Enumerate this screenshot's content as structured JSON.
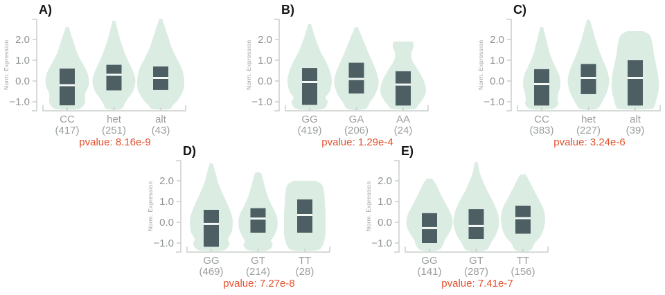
{
  "figure": {
    "background": "#ffffff",
    "description_texts": []
  },
  "styles": {
    "violin_fill": "#cfe6da",
    "violin_opacity": 0.75,
    "box_fill": "#4d5f63",
    "median_color": "#f4f9f6",
    "axis_color": "#c9cfca",
    "tick_text_color": "#8f948f",
    "label_text_color": "#9aa09b",
    "pvalue_color": "#e2512e",
    "letter_color": "#151515"
  },
  "chart_data": [
    {
      "type": "violin",
      "panel": "A",
      "panel_label": "A)",
      "ylabel": "Norm. Expression",
      "ytick_values": [
        2,
        1,
        0,
        -1
      ],
      "ytick_labels": [
        "2.0",
        "1.0",
        "0.0",
        "−1.0"
      ],
      "ylim": [
        -1.35,
        3.1
      ],
      "grid": false,
      "categories": [
        "CC",
        "het",
        "alt"
      ],
      "counts": [
        417,
        251,
        43
      ],
      "count_labels": [
        "(417)",
        "(251)",
        "(43)"
      ],
      "pvalue": "8.16e-9",
      "pvalue_label": "pvalue: 8.16e-9",
      "boxes": [
        {
          "q1": -1.17,
          "median": -0.2,
          "q3": 0.6
        },
        {
          "q1": -0.45,
          "median": 0.3,
          "q3": 0.78
        },
        {
          "q1": -0.43,
          "median": 0.15,
          "q3": 0.7
        }
      ],
      "violins": [
        [
          [
            2.6,
            2
          ],
          [
            2.2,
            6
          ],
          [
            1.8,
            10
          ],
          [
            1.3,
            15
          ],
          [
            0.8,
            23
          ],
          [
            0.3,
            30
          ],
          [
            -0.2,
            31
          ],
          [
            -0.6,
            26
          ],
          [
            -0.9,
            26
          ],
          [
            -1.1,
            25
          ],
          [
            -1.35,
            16
          ]
        ],
        [
          [
            2.9,
            2
          ],
          [
            2.5,
            5
          ],
          [
            2.0,
            9
          ],
          [
            1.5,
            14
          ],
          [
            1.0,
            20
          ],
          [
            0.5,
            27
          ],
          [
            0.05,
            31
          ],
          [
            -0.45,
            28
          ],
          [
            -0.8,
            21
          ],
          [
            -1.05,
            16
          ],
          [
            -1.35,
            10
          ]
        ],
        [
          [
            3.0,
            2
          ],
          [
            2.6,
            6
          ],
          [
            2.1,
            11
          ],
          [
            1.6,
            16
          ],
          [
            1.1,
            23
          ],
          [
            0.55,
            31
          ],
          [
            0.0,
            34
          ],
          [
            -0.5,
            32
          ],
          [
            -0.9,
            25
          ],
          [
            -1.15,
            18
          ],
          [
            -1.35,
            12
          ]
        ]
      ]
    },
    {
      "type": "violin",
      "panel": "B",
      "panel_label": "B)",
      "ylabel": "Norm. Expression",
      "ytick_values": [
        2,
        1,
        0,
        -1
      ],
      "ytick_labels": [
        "2.0",
        "1.0",
        "0.0",
        "−1.0"
      ],
      "ylim": [
        -1.35,
        3.1
      ],
      "grid": false,
      "categories": [
        "GG",
        "GA",
        "AA"
      ],
      "counts": [
        419,
        206,
        24
      ],
      "count_labels": [
        "(419)",
        "(206)",
        "(24)"
      ],
      "pvalue": "1.29e-4",
      "pvalue_label": "pvalue: 1.29e-4",
      "boxes": [
        {
          "q1": -1.15,
          "median": -0.05,
          "q3": 0.63
        },
        {
          "q1": -0.6,
          "median": 0.1,
          "q3": 0.88
        },
        {
          "q1": -1.18,
          "median": -0.17,
          "q3": 0.47
        }
      ],
      "violins": [
        [
          [
            2.75,
            2
          ],
          [
            2.3,
            6
          ],
          [
            1.9,
            10
          ],
          [
            1.4,
            16
          ],
          [
            0.9,
            24
          ],
          [
            0.4,
            30
          ],
          [
            -0.05,
            32
          ],
          [
            -0.5,
            29
          ],
          [
            -0.8,
            23
          ],
          [
            -1.0,
            26
          ],
          [
            -1.35,
            18
          ]
        ],
        [
          [
            2.6,
            2
          ],
          [
            2.2,
            7
          ],
          [
            1.8,
            12
          ],
          [
            1.3,
            18
          ],
          [
            0.85,
            24
          ],
          [
            0.35,
            30
          ],
          [
            -0.15,
            32
          ],
          [
            -0.65,
            27
          ],
          [
            -1.0,
            20
          ],
          [
            -1.35,
            12
          ]
        ],
        [
          [
            1.9,
            14
          ],
          [
            1.65,
            15
          ],
          [
            1.35,
            12
          ],
          [
            1.0,
            13
          ],
          [
            0.5,
            22
          ],
          [
            0.0,
            30
          ],
          [
            -0.5,
            33
          ],
          [
            -0.9,
            28
          ],
          [
            -1.15,
            22
          ],
          [
            -1.35,
            15
          ]
        ]
      ]
    },
    {
      "type": "violin",
      "panel": "C",
      "panel_label": "C)",
      "ylabel": "Norm. Expression",
      "ytick_values": [
        2,
        1,
        0,
        -1
      ],
      "ytick_labels": [
        "2.0",
        "1.0",
        "0.0",
        "−1.0"
      ],
      "ylim": [
        -1.35,
        3.1
      ],
      "grid": false,
      "categories": [
        "CC",
        "het",
        "alt"
      ],
      "counts": [
        383,
        227,
        39
      ],
      "count_labels": [
        "(383)",
        "(227)",
        "(39)"
      ],
      "pvalue": "3.24e-6",
      "pvalue_label": "pvalue: 3.24e-6",
      "boxes": [
        {
          "q1": -1.18,
          "median": -0.15,
          "q3": 0.57
        },
        {
          "q1": -0.63,
          "median": 0.15,
          "q3": 0.82
        },
        {
          "q1": -1.18,
          "median": 0.15,
          "q3": 1.0
        }
      ],
      "violins": [
        [
          [
            2.6,
            2
          ],
          [
            2.2,
            5
          ],
          [
            1.8,
            8
          ],
          [
            1.3,
            12
          ],
          [
            0.8,
            18
          ],
          [
            0.3,
            25
          ],
          [
            -0.2,
            27
          ],
          [
            -0.6,
            24
          ],
          [
            -0.9,
            23
          ],
          [
            -1.1,
            24
          ],
          [
            -1.35,
            15
          ]
        ],
        [
          [
            2.95,
            2
          ],
          [
            2.5,
            6
          ],
          [
            2.0,
            10
          ],
          [
            1.5,
            15
          ],
          [
            1.0,
            21
          ],
          [
            0.5,
            27
          ],
          [
            0.0,
            30
          ],
          [
            -0.5,
            27
          ],
          [
            -0.85,
            22
          ],
          [
            -1.1,
            18
          ],
          [
            -1.35,
            11
          ]
        ],
        [
          [
            2.4,
            12
          ],
          [
            2.2,
            21
          ],
          [
            1.8,
            25
          ],
          [
            1.3,
            27
          ],
          [
            0.8,
            30
          ],
          [
            0.3,
            33
          ],
          [
            -0.2,
            34
          ],
          [
            -0.6,
            33
          ],
          [
            -0.95,
            30
          ],
          [
            -1.2,
            28
          ],
          [
            -1.35,
            21
          ]
        ]
      ]
    },
    {
      "type": "violin",
      "panel": "D",
      "panel_label": "D)",
      "ylabel": "Norm. Expression",
      "ytick_values": [
        2,
        1,
        0,
        -1
      ],
      "ytick_labels": [
        "2.0",
        "1.0",
        "0.0",
        "−1.0"
      ],
      "ylim": [
        -1.35,
        3.1
      ],
      "grid": false,
      "categories": [
        "GG",
        "GT",
        "TT"
      ],
      "counts": [
        469,
        214,
        28
      ],
      "count_labels": [
        "(469)",
        "(214)",
        "(28)"
      ],
      "pvalue": "7.27e-8",
      "pvalue_label": "pvalue: 7.27e-8",
      "boxes": [
        {
          "q1": -1.18,
          "median": -0.08,
          "q3": 0.6
        },
        {
          "q1": -0.5,
          "median": 0.18,
          "q3": 0.68
        },
        {
          "q1": -0.5,
          "median": 0.35,
          "q3": 1.1
        }
      ],
      "violins": [
        [
          [
            2.85,
            2
          ],
          [
            2.4,
            6
          ],
          [
            1.9,
            10
          ],
          [
            1.4,
            16
          ],
          [
            0.9,
            23
          ],
          [
            0.4,
            29
          ],
          [
            -0.05,
            31
          ],
          [
            -0.5,
            29
          ],
          [
            -0.8,
            24
          ],
          [
            -1.05,
            26
          ],
          [
            -1.35,
            17
          ]
        ],
        [
          [
            2.4,
            4
          ],
          [
            2.1,
            7
          ],
          [
            1.7,
            10
          ],
          [
            1.25,
            14
          ],
          [
            0.8,
            20
          ],
          [
            0.3,
            27
          ],
          [
            -0.2,
            28
          ],
          [
            -0.6,
            24
          ],
          [
            -0.9,
            19
          ],
          [
            -1.1,
            21
          ],
          [
            -1.35,
            13
          ]
        ],
        [
          [
            2.0,
            16
          ],
          [
            1.8,
            25
          ],
          [
            1.4,
            28
          ],
          [
            0.9,
            29
          ],
          [
            0.4,
            30
          ],
          [
            -0.1,
            30
          ],
          [
            -0.55,
            30
          ],
          [
            -0.9,
            28
          ],
          [
            -1.15,
            25
          ],
          [
            -1.35,
            17
          ]
        ]
      ]
    },
    {
      "type": "violin",
      "panel": "E",
      "panel_label": "E)",
      "ylabel": "Norm. Expression",
      "ytick_values": [
        2,
        1,
        0,
        -1
      ],
      "ytick_labels": [
        "2.0",
        "1.0",
        "0.0",
        "−1.0"
      ],
      "ylim": [
        -1.35,
        3.1
      ],
      "grid": false,
      "categories": [
        "GG",
        "GT",
        "TT"
      ],
      "counts": [
        141,
        287,
        156
      ],
      "count_labels": [
        "(141)",
        "(287)",
        "(156)"
      ],
      "pvalue": "7.41e-7",
      "pvalue_label": "pvalue: 7.41e-7",
      "boxes": [
        {
          "q1": -1.0,
          "median": -0.28,
          "q3": 0.44
        },
        {
          "q1": -0.8,
          "median": -0.18,
          "q3": 0.63
        },
        {
          "q1": -0.55,
          "median": 0.2,
          "q3": 0.8
        }
      ],
      "violins": [
        [
          [
            2.1,
            4
          ],
          [
            1.8,
            10
          ],
          [
            1.3,
            17
          ],
          [
            0.8,
            25
          ],
          [
            0.3,
            32
          ],
          [
            -0.15,
            33
          ],
          [
            -0.55,
            28
          ],
          [
            -0.85,
            22
          ],
          [
            -1.05,
            20
          ],
          [
            -1.35,
            12
          ]
        ],
        [
          [
            2.9,
            2
          ],
          [
            2.4,
            5
          ],
          [
            1.95,
            10
          ],
          [
            1.45,
            17
          ],
          [
            0.95,
            25
          ],
          [
            0.45,
            31
          ],
          [
            -0.05,
            33
          ],
          [
            -0.55,
            29
          ],
          [
            -0.95,
            22
          ],
          [
            -1.35,
            13
          ]
        ],
        [
          [
            2.3,
            4
          ],
          [
            2.0,
            9
          ],
          [
            1.6,
            15
          ],
          [
            1.15,
            22
          ],
          [
            0.7,
            29
          ],
          [
            0.2,
            32
          ],
          [
            -0.3,
            30
          ],
          [
            -0.7,
            25
          ],
          [
            -1.0,
            17
          ],
          [
            -1.35,
            10
          ]
        ]
      ]
    }
  ]
}
